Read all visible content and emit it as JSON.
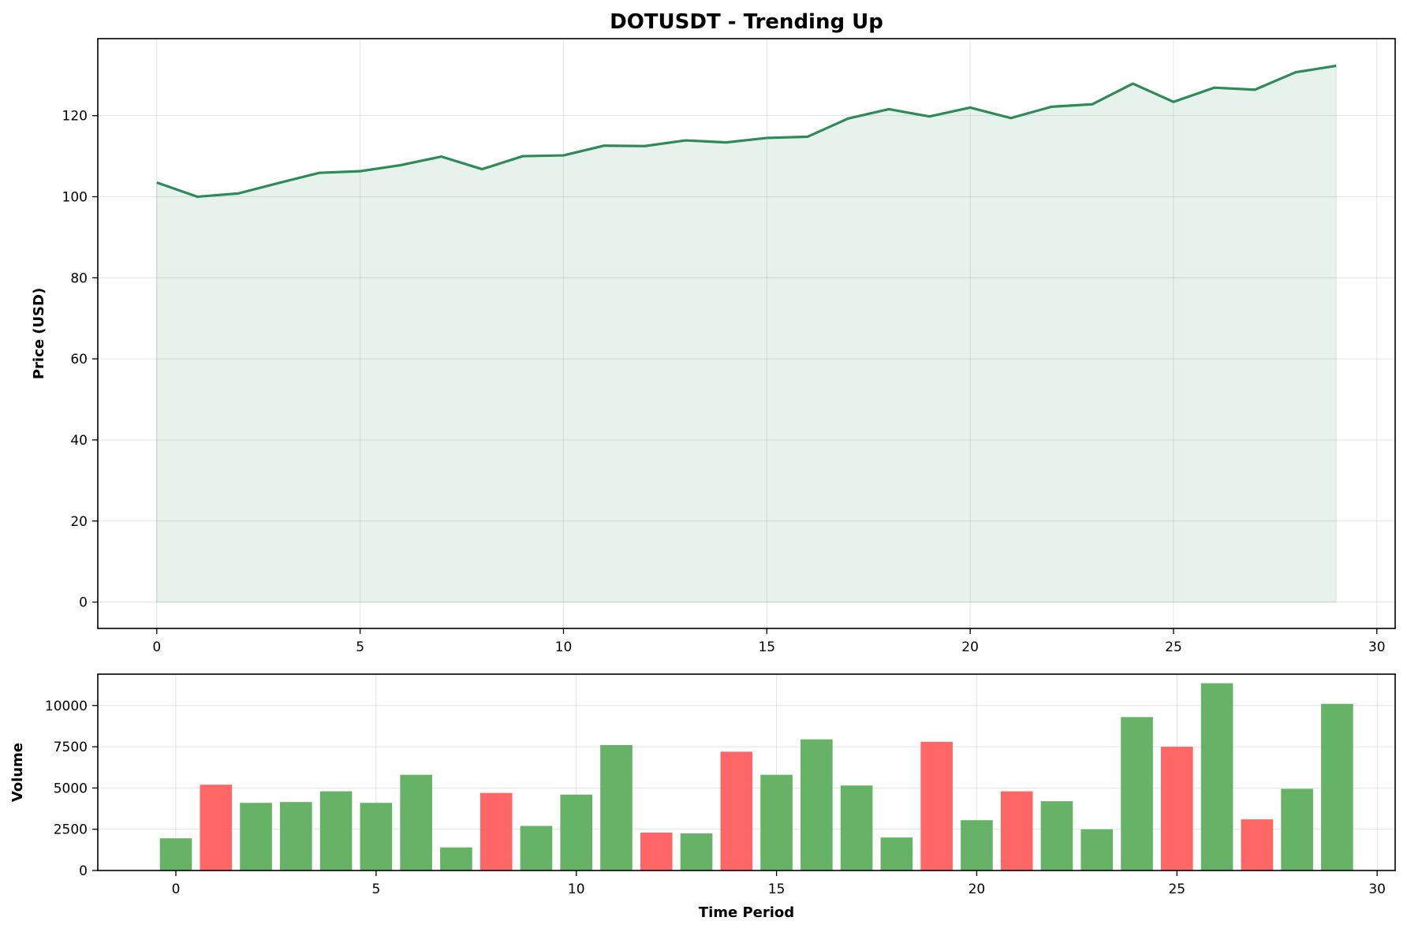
{
  "chart_data": [
    {
      "type": "area",
      "title": "DOTUSDT - Trending Up",
      "xlabel": "",
      "ylabel": "Price (USD)",
      "xlim": [
        -1.45,
        30.45
      ],
      "ylim": [
        -6.5,
        139
      ],
      "xticks": [
        0,
        5,
        10,
        15,
        20,
        25,
        30
      ],
      "yticks": [
        0,
        20,
        40,
        60,
        80,
        100,
        120
      ],
      "grid": true,
      "line_color": "#2e8b57",
      "fill_color": "#2e8b57",
      "x": [
        0,
        1,
        2,
        3,
        4,
        5,
        6,
        7,
        8,
        9,
        10,
        11,
        12,
        13,
        14,
        15,
        16,
        17,
        18,
        19,
        20,
        21,
        22,
        23,
        24,
        25,
        26,
        27,
        28,
        29
      ],
      "values": [
        103.5,
        100.0,
        100.8,
        103.4,
        105.9,
        106.3,
        107.8,
        109.9,
        106.8,
        110.0,
        110.2,
        112.6,
        112.5,
        113.9,
        113.4,
        114.5,
        114.8,
        119.3,
        121.6,
        119.8,
        122.0,
        119.4,
        122.2,
        122.8,
        127.9,
        123.4,
        126.9,
        126.4,
        130.7,
        132.3
      ]
    },
    {
      "type": "bar",
      "title": "",
      "xlabel": "Time Period",
      "ylabel": "Volume",
      "xlim": [
        -1.95,
        30.45
      ],
      "ylim": [
        0,
        11900
      ],
      "xticks": [
        0,
        5,
        10,
        15,
        20,
        25,
        30
      ],
      "yticks": [
        0,
        2500,
        5000,
        7500,
        10000
      ],
      "grid": true,
      "up_color": "#66b266",
      "down_color": "#ff6666",
      "categories": [
        0,
        1,
        2,
        3,
        4,
        5,
        6,
        7,
        8,
        9,
        10,
        11,
        12,
        13,
        14,
        15,
        16,
        17,
        18,
        19,
        20,
        21,
        22,
        23,
        24,
        25,
        26,
        27,
        28,
        29
      ],
      "values": [
        1950,
        5200,
        4100,
        4150,
        4800,
        4100,
        5800,
        1400,
        4700,
        2700,
        4600,
        7600,
        2300,
        2250,
        7200,
        5800,
        7950,
        5150,
        2000,
        7800,
        3050,
        4800,
        4200,
        2500,
        9300,
        7500,
        11350,
        3100,
        4950,
        10100
      ],
      "direction": [
        "up",
        "down",
        "up",
        "up",
        "up",
        "up",
        "up",
        "up",
        "down",
        "up",
        "up",
        "up",
        "down",
        "up",
        "down",
        "up",
        "up",
        "up",
        "up",
        "down",
        "up",
        "down",
        "up",
        "up",
        "up",
        "down",
        "up",
        "down",
        "up",
        "up"
      ]
    }
  ]
}
